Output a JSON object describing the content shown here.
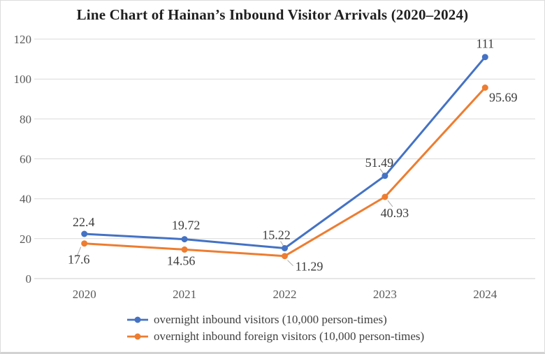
{
  "title": "Line Chart of Hainan’s Inbound Visitor Arrivals (2020–2024)",
  "chart_data": {
    "type": "line",
    "title": "Line Chart of Hainan’s Inbound Visitor Arrivals (2020–2024)",
    "categories": [
      "2020",
      "2021",
      "2022",
      "2023",
      "2024"
    ],
    "series": [
      {
        "name": "overnight inbound visitors (10,000 person-times)",
        "color": "#4472C4",
        "values": [
          22.4,
          19.72,
          15.22,
          51.49,
          111
        ]
      },
      {
        "name": "overnight inbound foreign visitors (10,000 person-times)",
        "color": "#ED7D31",
        "values": [
          17.6,
          14.56,
          11.29,
          40.93,
          95.69
        ]
      }
    ],
    "xlabel": "",
    "ylabel": "",
    "ylim": [
      0,
      120
    ],
    "yticks": [
      0,
      20,
      40,
      60,
      80,
      100,
      120
    ],
    "grid": true,
    "data_labels": true,
    "legend_position": "bottom"
  },
  "colors": {
    "gridline": "#D9D9D9",
    "zero_line": "#CDCDCD",
    "tick_label": "#595959",
    "data_label": "#3B3B3B",
    "leader_line": "#A6A6A6",
    "title": "#1F1F1F",
    "frame_border": "#DCDCDC"
  }
}
